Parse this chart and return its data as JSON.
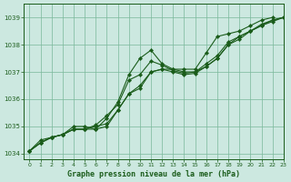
{
  "title": "Graphe pression niveau de la mer (hPa)",
  "bg_color": "#cce8e0",
  "line_color": "#1a5c1a",
  "grid_color": "#7ab89a",
  "xlim": [
    -0.5,
    23
  ],
  "ylim": [
    1033.8,
    1039.5
  ],
  "yticks": [
    1034,
    1035,
    1036,
    1037,
    1038,
    1039
  ],
  "xticks": [
    0,
    1,
    2,
    3,
    4,
    5,
    6,
    7,
    8,
    9,
    10,
    11,
    12,
    13,
    14,
    15,
    16,
    17,
    18,
    19,
    20,
    21,
    22,
    23
  ],
  "series": [
    {
      "x": [
        0,
        1,
        2,
        3,
        4,
        5,
        6,
        7,
        8,
        9,
        10,
        11,
        12,
        13,
        14,
        15,
        16,
        17,
        18,
        19,
        20,
        21,
        22
      ],
      "y": [
        1034.1,
        1034.5,
        1034.6,
        1034.7,
        1035.0,
        1035.0,
        1034.9,
        1035.3,
        1035.9,
        1036.9,
        1037.5,
        1037.8,
        1037.3,
        1037.1,
        1037.1,
        1037.1,
        1037.7,
        1038.3,
        1038.4,
        1038.5,
        1038.7,
        1038.9,
        1039.0
      ]
    },
    {
      "x": [
        0,
        1,
        2,
        3,
        4,
        5,
        6,
        7,
        8,
        9,
        10,
        11,
        12,
        13,
        14,
        15,
        16,
        17,
        18,
        19,
        20,
        21,
        22,
        23
      ],
      "y": [
        1034.1,
        1034.4,
        1034.6,
        1034.7,
        1034.9,
        1034.9,
        1034.9,
        1035.0,
        1035.6,
        1036.2,
        1036.5,
        1037.0,
        1037.1,
        1037.1,
        1037.0,
        1037.0,
        1037.2,
        1037.5,
        1038.0,
        1038.3,
        1038.5,
        1038.7,
        1038.9,
        1039.0
      ]
    },
    {
      "x": [
        0,
        1,
        2,
        3,
        4,
        5,
        6,
        7,
        8,
        9,
        10,
        11,
        12,
        13,
        14,
        15,
        16,
        17,
        18,
        19,
        20,
        21,
        22,
        23
      ],
      "y": [
        1034.1,
        1034.4,
        1034.6,
        1034.7,
        1034.9,
        1034.9,
        1035.0,
        1035.1,
        1035.6,
        1036.2,
        1036.4,
        1037.0,
        1037.1,
        1037.0,
        1036.9,
        1036.95,
        1037.2,
        1037.5,
        1038.0,
        1038.2,
        1038.5,
        1038.7,
        1038.85,
        1039.0
      ]
    },
    {
      "x": [
        0,
        1,
        2,
        3,
        4,
        5,
        6,
        7,
        8,
        9,
        10,
        11,
        12,
        13,
        14,
        15,
        16,
        17,
        18,
        19,
        20,
        21,
        22,
        23
      ],
      "y": [
        1034.1,
        1034.4,
        1034.6,
        1034.7,
        1034.9,
        1034.9,
        1035.05,
        1035.4,
        1035.8,
        1036.7,
        1036.9,
        1037.4,
        1037.25,
        1037.05,
        1036.95,
        1037.0,
        1037.3,
        1037.6,
        1038.1,
        1038.3,
        1038.5,
        1038.75,
        1038.9,
        1039.0
      ]
    }
  ],
  "tick_fontsize": 5,
  "label_fontsize": 6,
  "linewidth": 0.8,
  "markersize": 2.2
}
